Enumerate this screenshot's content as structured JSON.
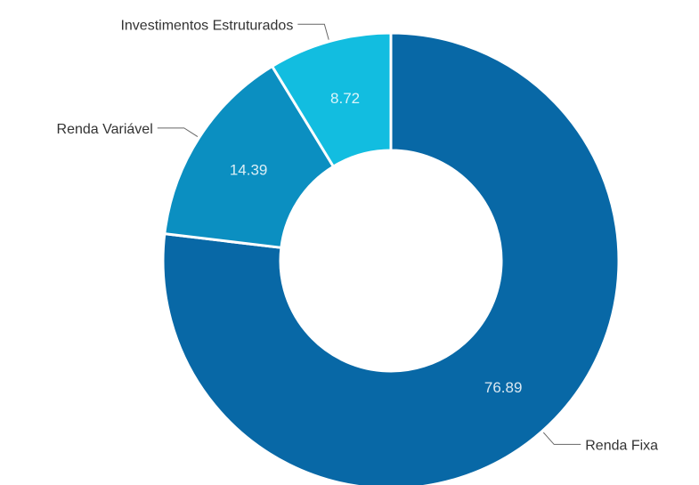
{
  "chart_data": {
    "type": "pie",
    "variant": "donut",
    "categories": [
      "Renda Fixa",
      "Renda Variável",
      "Investimentos Estruturados"
    ],
    "values": [
      76.89,
      14.39,
      8.72
    ],
    "value_labels": [
      "76.89",
      "14.39",
      "8.72"
    ],
    "colors": [
      "#0868a6",
      "#0b8fc1",
      "#12bde0"
    ],
    "title": "",
    "legend": "none"
  }
}
